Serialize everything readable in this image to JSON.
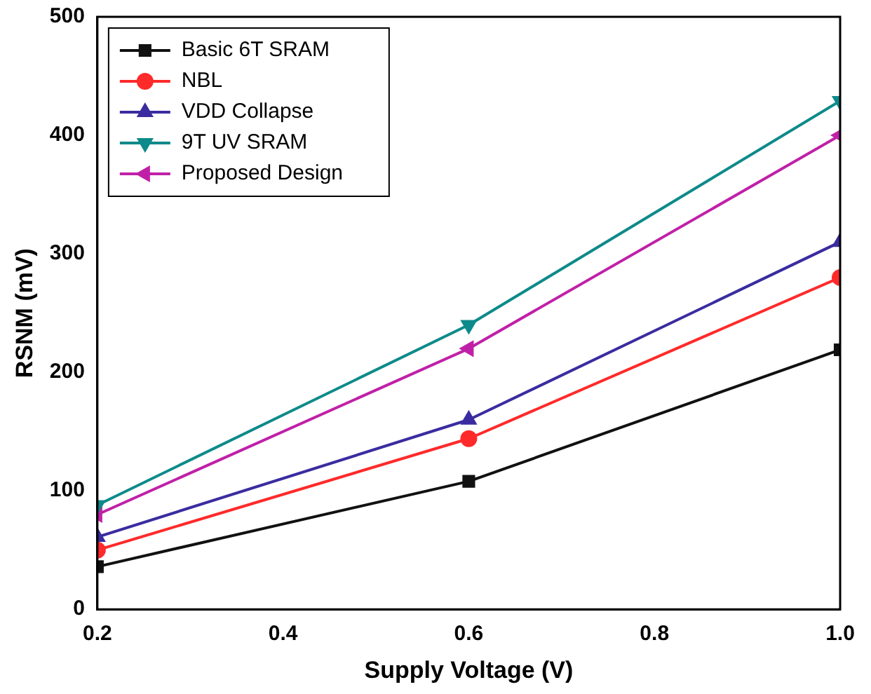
{
  "chart_data": {
    "type": "line",
    "xlabel": "Supply Voltage (V)",
    "ylabel": "RSNM (mV)",
    "x": [
      0.2,
      0.6,
      1.0
    ],
    "series": [
      {
        "name": "Basic 6T SRAM",
        "color": "#111111",
        "marker": "square",
        "values": [
          36,
          108,
          219
        ]
      },
      {
        "name": "NBL",
        "color": "#ff2a2a",
        "marker": "circle",
        "values": [
          50,
          144,
          280
        ]
      },
      {
        "name": "VDD Collapse",
        "color": "#3a2ca0",
        "marker": "triangle",
        "values": [
          61,
          160,
          310
        ]
      },
      {
        "name": "9T UV SRAM",
        "color": "#0e8a8a",
        "marker": "triangle-down",
        "values": [
          88,
          240,
          429
        ]
      },
      {
        "name": "Proposed Design",
        "color": "#c020a8",
        "marker": "triangle-left",
        "values": [
          80,
          220,
          400
        ]
      }
    ],
    "xlim": [
      0.2,
      1.0
    ],
    "ylim": [
      0,
      500
    ],
    "xticks": [
      0.2,
      0.4,
      0.6,
      0.8,
      {
        "value": 1.0,
        "label": "1.0"
      }
    ],
    "yticks": [
      0,
      100,
      200,
      300,
      400,
      500
    ],
    "grid": false,
    "legend": "top left",
    "line_style": "solid"
  }
}
